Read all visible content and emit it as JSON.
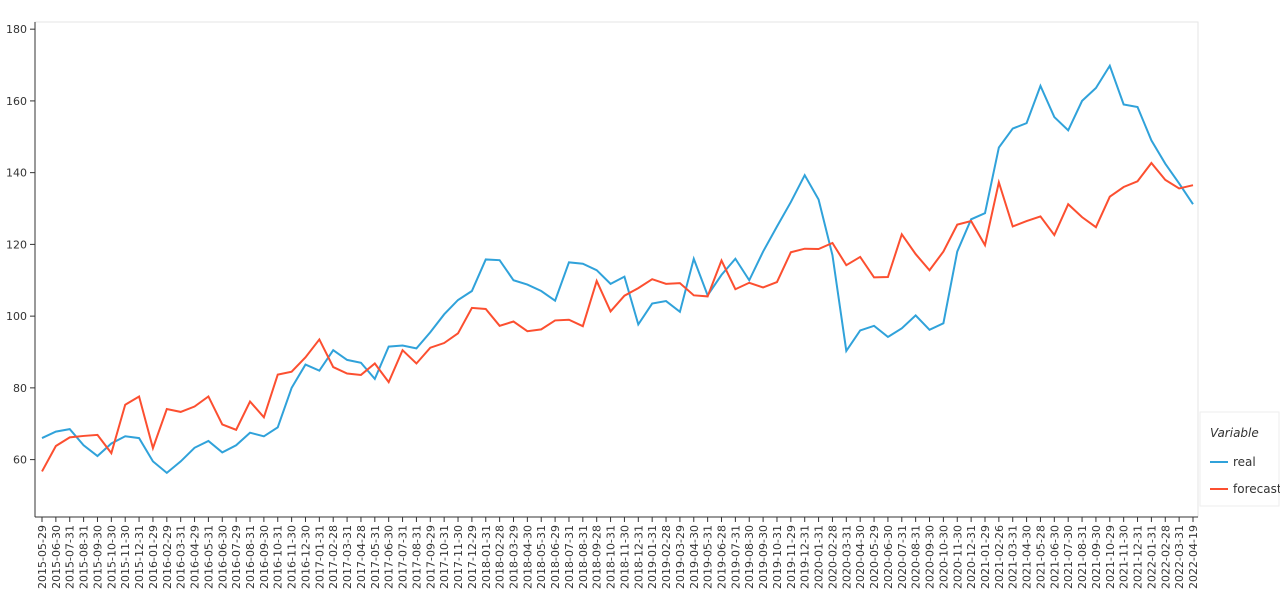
{
  "chart_data": {
    "type": "line",
    "categories": [
      "2015-05-29",
      "2015-06-30",
      "2015-07-31",
      "2015-08-31",
      "2015-09-30",
      "2015-10-30",
      "2015-11-30",
      "2015-12-31",
      "2016-01-29",
      "2016-02-29",
      "2016-03-31",
      "2016-04-29",
      "2016-05-31",
      "2016-06-30",
      "2016-07-29",
      "2016-08-31",
      "2016-09-30",
      "2016-10-31",
      "2016-11-30",
      "2016-12-30",
      "2017-01-31",
      "2017-02-28",
      "2017-03-31",
      "2017-04-28",
      "2017-05-31",
      "2017-06-30",
      "2017-07-31",
      "2017-08-31",
      "2017-09-29",
      "2017-10-31",
      "2017-11-30",
      "2017-12-29",
      "2018-01-31",
      "2018-02-28",
      "2018-03-29",
      "2018-04-30",
      "2018-05-31",
      "2018-06-29",
      "2018-07-31",
      "2018-08-31",
      "2018-09-28",
      "2018-10-31",
      "2018-11-30",
      "2018-12-31",
      "2019-01-31",
      "2019-02-28",
      "2019-03-29",
      "2019-04-30",
      "2019-05-31",
      "2019-06-28",
      "2019-07-31",
      "2019-08-30",
      "2019-09-30",
      "2019-10-31",
      "2019-11-29",
      "2019-12-31",
      "2020-01-31",
      "2020-02-28",
      "2020-03-31",
      "2020-04-30",
      "2020-05-29",
      "2020-06-30",
      "2020-07-31",
      "2020-08-31",
      "2020-09-30",
      "2020-10-30",
      "2020-11-30",
      "2020-12-31",
      "2021-01-29",
      "2021-02-26",
      "2021-03-31",
      "2021-04-30",
      "2021-05-28",
      "2021-06-30",
      "2021-07-30",
      "2021-08-31",
      "2021-09-30",
      "2021-10-29",
      "2021-11-30",
      "2021-12-31",
      "2022-01-31",
      "2022-02-28",
      "2022-03-31",
      "2022-04-19"
    ],
    "series": [
      {
        "name": "real",
        "color": "#30a2da",
        "values": [
          66,
          67.8,
          68.5,
          64,
          61,
          64.5,
          66.5,
          66,
          59.5,
          56.3,
          59.5,
          63.3,
          65.2,
          62,
          64,
          67.5,
          66.5,
          69,
          80,
          86.5,
          84.8,
          90.5,
          87.8,
          87,
          82.5,
          91.5,
          91.8,
          91,
          95.5,
          100.5,
          104.5,
          107,
          115.8,
          115.6,
          110,
          108.8,
          107,
          104.3,
          115,
          114.6,
          112.8,
          109,
          111,
          97.7,
          103.5,
          104.2,
          101.2,
          116,
          105.8,
          111.5,
          116,
          110,
          118,
          125,
          131.8,
          139.3,
          132.5,
          117,
          90.3,
          96,
          97.3,
          94.2,
          96.6,
          100.2,
          96.2,
          98,
          118,
          127,
          128.7,
          147,
          152.3,
          153.8,
          164.2,
          155.5,
          151.8,
          160,
          163.6,
          169.8,
          159,
          158.3,
          149,
          142.5,
          137,
          131.2
        ]
      },
      {
        "name": "forecast",
        "color": "#fc4f30",
        "values": [
          56.7,
          63.8,
          66.2,
          66.6,
          66.9,
          61.8,
          75.3,
          77.6,
          63.2,
          74.1,
          73.3,
          74.8,
          77.6,
          69.8,
          68.3,
          76.2,
          71.8,
          83.7,
          84.5,
          88.5,
          93.5,
          85.8,
          84,
          83.6,
          86.8,
          81.6,
          90.5,
          86.8,
          91.2,
          92.5,
          95.2,
          102.3,
          102,
          97.3,
          98.5,
          95.8,
          96.3,
          98.8,
          99,
          97.2,
          109.8,
          101.3,
          105.7,
          107.8,
          110.3,
          109,
          109.2,
          105.8,
          105.5,
          115.5,
          107.5,
          109.3,
          108,
          109.5,
          117.8,
          118.8,
          118.7,
          120.4,
          114.2,
          116.5,
          110.8,
          110.9,
          122.8,
          117.3,
          112.8,
          118,
          125.5,
          126.5,
          119.8,
          137.3,
          125,
          126.5,
          127.8,
          122.6,
          131.2,
          127.6,
          124.8,
          133.3,
          136,
          137.6,
          142.7,
          138,
          135.6,
          136.5
        ]
      }
    ],
    "legend_title": "Variable",
    "ylim": [
      44,
      182
    ],
    "yticks": [
      60,
      80,
      100,
      120,
      140,
      160,
      180
    ]
  }
}
